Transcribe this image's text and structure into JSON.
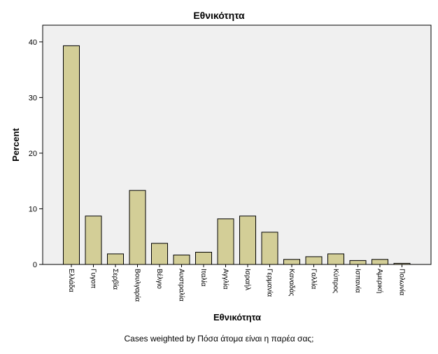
{
  "chart_data": {
    "type": "bar",
    "title": "Εθνικότητα",
    "xlabel": "Εθνικότητα",
    "ylabel": "Percent",
    "footnote": "Cases weighted by Πόσα άτομα είναι η παρέα σας;",
    "categories": [
      "Ελλάδα",
      "Γυγοπ",
      "Σερβία",
      "Βουλγαρία",
      "Βέλγιο",
      "Αυστραλία",
      "Ιταλία",
      "Αγγλία",
      "Ισραήλ",
      "Γερμανία",
      "Καναδάς",
      "Γαλλία",
      "Κύπρος",
      "Ισπανία",
      "Αμερική",
      "Πολωνία"
    ],
    "values": [
      39.3,
      8.7,
      1.9,
      13.3,
      3.8,
      1.7,
      2.2,
      8.2,
      8.7,
      5.8,
      0.9,
      1.4,
      1.9,
      0.7,
      0.9,
      0.2
    ],
    "ylim": [
      0,
      43
    ],
    "yticks": [
      0,
      10,
      20,
      30,
      40
    ],
    "grid": false,
    "legend": "none",
    "colors": {
      "bar_fill": "#d3ce97",
      "bar_stroke": "#000000",
      "plot_bg": "#f0f0f0"
    }
  }
}
